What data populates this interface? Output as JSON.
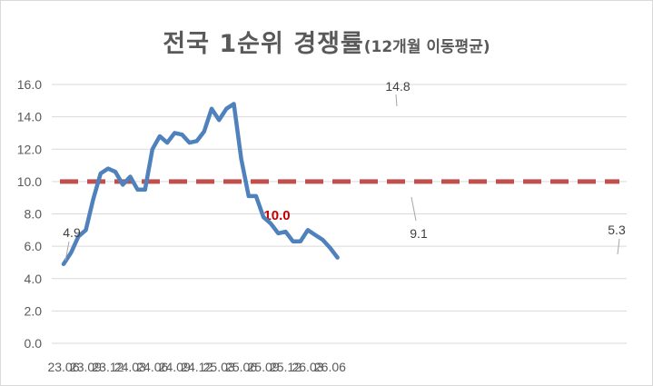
{
  "chart_data": {
    "type": "line",
    "title": "전국 1순위 경쟁률",
    "subtitle": "(12개월 이동평균)",
    "x_tick_labels": [
      "23.06",
      "23.09",
      "23.12",
      "24.03",
      "24.06",
      "24.09",
      "24.12",
      "25.03",
      "25.06",
      "25.09",
      "25.12",
      "26.03",
      "26.06"
    ],
    "x": [
      "23.06",
      "23.07",
      "23.08",
      "23.09",
      "23.10",
      "23.11",
      "23.12",
      "24.01",
      "24.02",
      "24.03",
      "24.04",
      "24.05",
      "24.06",
      "24.07",
      "24.08",
      "24.09",
      "24.10",
      "24.11",
      "24.12",
      "25.01",
      "25.02",
      "25.03",
      "25.04",
      "25.05",
      "25.06",
      "25.07",
      "25.08",
      "25.09",
      "25.10",
      "25.11",
      "25.12",
      "26.01",
      "26.02",
      "26.03",
      "26.04",
      "26.05",
      "26.06",
      "26.07"
    ],
    "series": [
      {
        "color": "#4f81bd",
        "values": [
          4.9,
          5.6,
          6.6,
          7.0,
          8.9,
          10.5,
          10.8,
          10.6,
          9.8,
          10.3,
          9.5,
          9.5,
          12.0,
          12.8,
          12.4,
          13.0,
          12.9,
          12.4,
          12.5,
          13.1,
          14.5,
          13.8,
          14.5,
          14.8,
          11.4,
          9.1,
          9.1,
          7.8,
          7.4,
          6.8,
          6.9,
          6.3,
          6.3,
          7.0,
          6.7,
          6.4,
          5.9,
          5.3
        ]
      }
    ],
    "reference_line": {
      "value": 10.0,
      "label": "10.0",
      "color": "#c0504d"
    },
    "data_labels": [
      {
        "index": 0,
        "text": "4.9"
      },
      {
        "index": 23,
        "text": "14.8"
      },
      {
        "index": 25,
        "text": "9.1"
      },
      {
        "index": 37,
        "text": "5.3"
      }
    ],
    "y_tick_labels": [
      "0.0",
      "2.0",
      "4.0",
      "6.0",
      "8.0",
      "10.0",
      "12.0",
      "14.0",
      "16.0"
    ],
    "ylim": [
      0,
      16
    ],
    "grid": true,
    "legend": "none"
  }
}
